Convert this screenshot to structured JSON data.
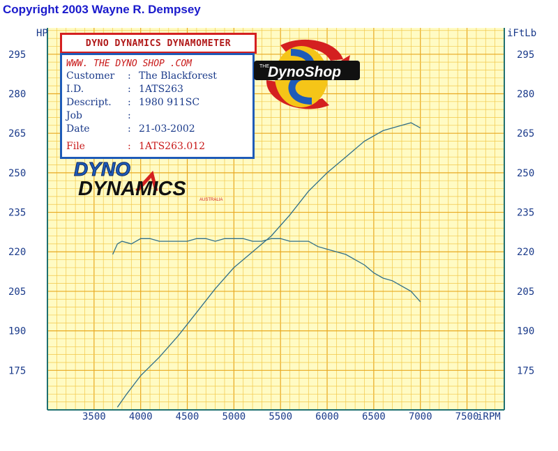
{
  "copyright": "Copyright 2003 Wayne R. Dempsey",
  "header": {
    "title": "DYNO DYNAMICS DYNAMOMETER",
    "website": "WWW. THE DYNO SHOP .COM",
    "rows": [
      {
        "label": "Customer",
        "value": "The Blackforest"
      },
      {
        "label": "I.D.",
        "value": "1ATS263"
      },
      {
        "label": "Descript.",
        "value": "1980 911SC"
      },
      {
        "label": "Job",
        "value": ""
      },
      {
        "label": "Date",
        "value": "21-03-2002"
      },
      {
        "label": "File",
        "value": "1ATS263.012"
      }
    ]
  },
  "logos": {
    "dynoshop": "DynoShop",
    "dynoshop_small": "THE",
    "dyno_dynamics_line1": "DYNO",
    "dyno_dynamics_line2": "DYNAMICS",
    "dyno_dynamics_sub": "AUSTRALIA"
  },
  "colors": {
    "grid_bg": "#fffbc4",
    "grid_minor": "#f2c84a",
    "grid_major": "#e8a820",
    "frame": "#1e7070",
    "curve": "#2f6f8a",
    "text": "#1a3a8a",
    "red": "#c81818"
  },
  "chart_data": {
    "type": "line",
    "title": "DYNO DYNAMICS DYNAMOMETER",
    "ylabel_left": "HP",
    "ylabel_right": "iFtLb",
    "xlabel": "iRPM",
    "x_ticks": [
      3500,
      4000,
      4500,
      5000,
      5500,
      6000,
      6500,
      7000,
      7500
    ],
    "y_ticks": [
      175,
      190,
      205,
      220,
      235,
      250,
      265,
      280,
      295
    ],
    "xlim": [
      3000,
      7900
    ],
    "ylim": [
      160,
      305
    ],
    "grid": true,
    "series": [
      {
        "name": "",
        "x": [
          3750,
          3850,
          4000,
          4200,
          4400,
          4600,
          4800,
          5000,
          5200,
          5400,
          5600,
          5800,
          6000,
          6200,
          6400,
          6600,
          6800,
          6900,
          7000
        ],
        "values": [
          161,
          166,
          173,
          180,
          188,
          197,
          206,
          214,
          220,
          226,
          234,
          243,
          250,
          256,
          262,
          266,
          268,
          269,
          267
        ]
      },
      {
        "name": "",
        "x": [
          3700,
          3750,
          3800,
          3900,
          4000,
          4100,
          4200,
          4300,
          4400,
          4500,
          4600,
          4700,
          4800,
          4900,
          5000,
          5100,
          5200,
          5300,
          5400,
          5500,
          5600,
          5700,
          5800,
          5900,
          6000,
          6100,
          6200,
          6300,
          6400,
          6500,
          6600,
          6700,
          6800,
          6900,
          7000
        ],
        "values": [
          219,
          223,
          224,
          223,
          225,
          225,
          224,
          224,
          224,
          224,
          225,
          225,
          224,
          225,
          225,
          225,
          224,
          224,
          225,
          225,
          224,
          224,
          224,
          222,
          221,
          220,
          219,
          217,
          215,
          212,
          210,
          209,
          207,
          205,
          201
        ]
      }
    ]
  }
}
